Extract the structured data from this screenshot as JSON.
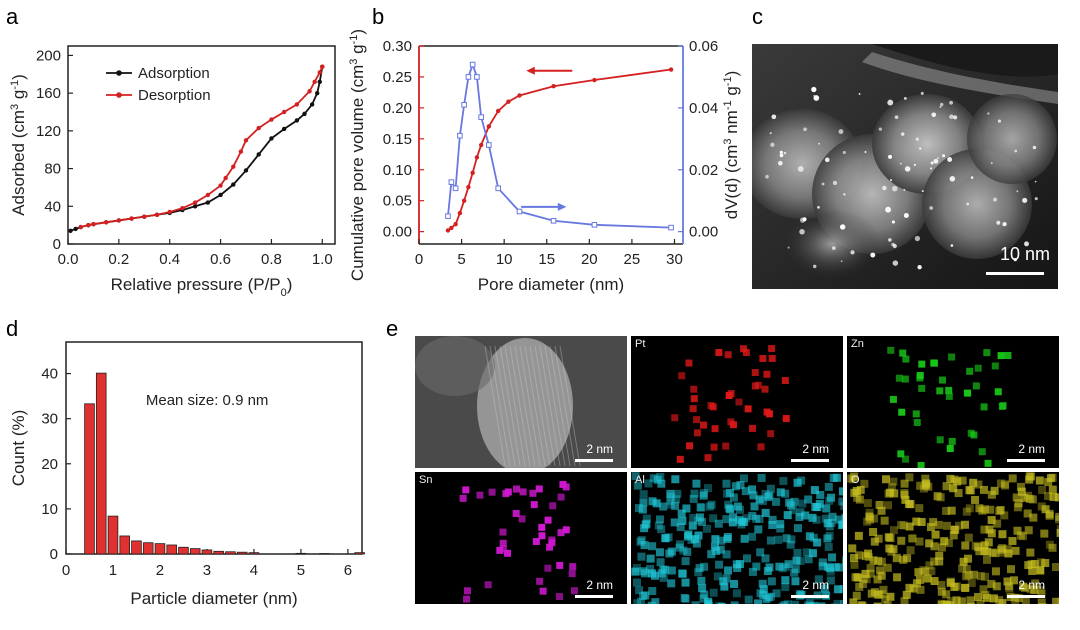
{
  "panels": {
    "a": "a",
    "b": "b",
    "c": "c",
    "d": "d",
    "e": "e"
  },
  "chart_data": [
    {
      "id": "a",
      "type": "line",
      "title": "",
      "xlabel": "Relative pressure (P/P",
      "xlabel_sub": "0",
      "xlabel_end": ")",
      "ylabel": "Adsorbed (cm",
      "ylabel_sup1": "3",
      "ylabel_mid": " g",
      "ylabel_sup2": "-1",
      "ylabel_end": ")",
      "xlim": [
        0.0,
        1.05
      ],
      "ylim": [
        0,
        210
      ],
      "xticks": [
        "0.0",
        "0.2",
        "0.4",
        "0.6",
        "0.8",
        "1.0"
      ],
      "xtick_values": [
        0.0,
        0.2,
        0.4,
        0.6,
        0.8,
        1.0
      ],
      "yticks": [
        "0",
        "40",
        "80",
        "120",
        "160",
        "200"
      ],
      "ytick_values": [
        0,
        40,
        80,
        120,
        160,
        200
      ],
      "legend": [
        "Adsorption",
        "Desorption"
      ],
      "series": [
        {
          "name": "Adsorption",
          "color": "#111111",
          "x": [
            0.01,
            0.03,
            0.05,
            0.08,
            0.1,
            0.15,
            0.2,
            0.25,
            0.3,
            0.35,
            0.4,
            0.45,
            0.5,
            0.55,
            0.6,
            0.65,
            0.7,
            0.75,
            0.8,
            0.85,
            0.9,
            0.93,
            0.96,
            0.98,
            0.99,
            1.0
          ],
          "values": [
            14,
            16,
            18,
            20,
            21,
            23,
            25,
            27,
            29,
            31,
            33,
            36,
            40,
            44,
            52,
            63,
            78,
            95,
            112,
            122,
            131,
            138,
            148,
            160,
            172,
            188
          ]
        },
        {
          "name": "Desorption",
          "color": "#d42020",
          "x": [
            1.0,
            0.99,
            0.97,
            0.95,
            0.9,
            0.85,
            0.8,
            0.75,
            0.7,
            0.68,
            0.65,
            0.62,
            0.6,
            0.55,
            0.5,
            0.45,
            0.4,
            0.35,
            0.3,
            0.25,
            0.2,
            0.15,
            0.1,
            0.08,
            0.05
          ],
          "values": [
            188,
            182,
            172,
            162,
            148,
            140,
            132,
            123,
            110,
            98,
            82,
            70,
            62,
            52,
            44,
            38,
            34,
            31,
            29,
            27,
            25,
            23,
            21,
            20,
            18
          ]
        }
      ]
    },
    {
      "id": "b",
      "type": "line",
      "title": "",
      "xlabel": "Pore diameter (nm)",
      "ylabel_left": "Cumulative pore volume (cm",
      "ylabel_left_sup1": "3",
      "ylabel_left_mid": " g",
      "ylabel_left_sup2": "-1",
      "ylabel_left_end": ")",
      "ylabel_right": "dV(d) (cm",
      "ylabel_right_sup1": "3",
      "ylabel_right_mid": " nm",
      "ylabel_right_sup2": "-1",
      "ylabel_right_mid2": " g",
      "ylabel_right_sup3": "-1",
      "ylabel_right_end": ")",
      "xlim": [
        0,
        31
      ],
      "ylim_left": [
        -0.02,
        0.3
      ],
      "ylim_right": [
        -0.004,
        0.06
      ],
      "xticks": [
        "0",
        "5",
        "10",
        "15",
        "20",
        "25",
        "30"
      ],
      "xtick_values": [
        0,
        5,
        10,
        15,
        20,
        25,
        30
      ],
      "yticks_left": [
        "0.00",
        "0.05",
        "0.10",
        "0.15",
        "0.20",
        "0.25",
        "0.30"
      ],
      "ytick_left_values": [
        0.0,
        0.05,
        0.1,
        0.15,
        0.2,
        0.25,
        0.3
      ],
      "yticks_right": [
        "0.00",
        "0.02",
        "0.04",
        "0.06"
      ],
      "ytick_right_values": [
        0.0,
        0.02,
        0.04,
        0.06
      ],
      "series": [
        {
          "name": "Cumulative pore volume",
          "axis": "left",
          "color": "#d42020",
          "x": [
            3.4,
            3.8,
            4.3,
            4.8,
            5.3,
            5.8,
            6.3,
            6.8,
            7.3,
            8.2,
            9.3,
            10.5,
            11.8,
            15.8,
            20.6,
            29.6
          ],
          "values": [
            0.002,
            0.006,
            0.012,
            0.03,
            0.05,
            0.072,
            0.095,
            0.12,
            0.14,
            0.17,
            0.195,
            0.21,
            0.22,
            0.235,
            0.245,
            0.262
          ]
        },
        {
          "name": "dV(d)",
          "axis": "right",
          "color": "#6878e0",
          "x": [
            3.4,
            3.8,
            4.3,
            4.8,
            5.3,
            5.8,
            6.3,
            6.8,
            7.3,
            8.2,
            9.3,
            11.8,
            15.8,
            20.6,
            29.6
          ],
          "values": [
            0.005,
            0.016,
            0.014,
            0.031,
            0.041,
            0.05,
            0.054,
            0.05,
            0.037,
            0.028,
            0.014,
            0.0065,
            0.0035,
            0.0022,
            0.0013
          ]
        }
      ],
      "arrows": [
        {
          "direction": "left",
          "color": "#d42020",
          "y": 0.26
        },
        {
          "direction": "right",
          "color": "#6878e0",
          "y": 0.008
        }
      ]
    },
    {
      "id": "d",
      "type": "bar",
      "title": "",
      "xlabel": "Particle diameter (nm)",
      "ylabel": "Count (%)",
      "annotation": "Mean size: 0.9 nm",
      "xlim": [
        0,
        6.3
      ],
      "ylim": [
        0,
        47
      ],
      "xticks": [
        "0",
        "1",
        "2",
        "3",
        "4",
        "5",
        "6"
      ],
      "xtick_values": [
        0,
        1,
        2,
        3,
        4,
        5,
        6
      ],
      "yticks": [
        "0",
        "10",
        "20",
        "30",
        "40"
      ],
      "ytick_values": [
        0,
        10,
        20,
        30,
        40
      ],
      "color": "#e03030",
      "bin_width": 0.25,
      "x": [
        0.5,
        0.75,
        1.0,
        1.25,
        1.5,
        1.75,
        2.0,
        2.25,
        2.5,
        2.75,
        3.0,
        3.25,
        3.5,
        3.75,
        4.0,
        4.25,
        4.5,
        4.75,
        5.0,
        5.25,
        5.5,
        5.75,
        6.0,
        6.25
      ],
      "values": [
        33.3,
        40.1,
        8.4,
        4.0,
        2.9,
        2.5,
        2.3,
        2.0,
        1.5,
        1.2,
        0.9,
        0.6,
        0.5,
        0.4,
        0.3,
        0.0,
        0.0,
        0.0,
        0.15,
        0.0,
        0.1,
        0.0,
        0.0,
        0.3
      ]
    }
  ],
  "panel_c": {
    "scale_label": "10 nm"
  },
  "panel_e": {
    "tiles": [
      {
        "label": "",
        "scale": "2 nm",
        "kind": "haadf"
      },
      {
        "label": "Pt",
        "scale": "2 nm",
        "kind": "sparse",
        "color": "#e01818"
      },
      {
        "label": "Zn",
        "scale": "2 nm",
        "kind": "sparse",
        "color": "#18c818"
      },
      {
        "label": "Sn",
        "scale": "2 nm",
        "kind": "sparse",
        "color": "#d018d0"
      },
      {
        "label": "Al",
        "scale": "2 nm",
        "kind": "dense",
        "color": "#20c8d8"
      },
      {
        "label": "O",
        "scale": "2 nm",
        "kind": "dense",
        "color": "#c8c020"
      }
    ]
  }
}
